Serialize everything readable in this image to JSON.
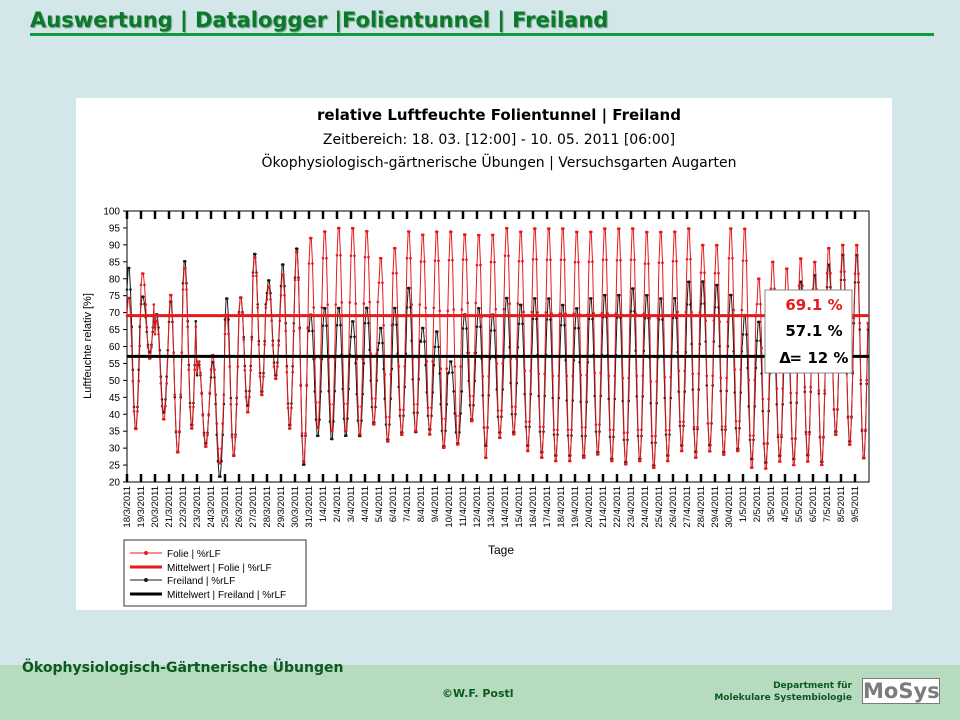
{
  "slide": {
    "title": "Auswertung | Datalogger |Folientunnel | Freiland",
    "footer_course": "Ökophysiologisch-Gärtnerische Übungen",
    "footer_copyright": "©W.F. Postl",
    "footer_dept_line1": "Department für",
    "footer_dept_line2": "Molekulare Systembiologie",
    "footer_logo": "MoSys"
  },
  "chart_data": {
    "type": "line",
    "title": "relative Luftfeuchte Folientunnel | Freiland",
    "subtitle": "Zeitbereich: 18. 03. [12:00] - 10. 05. 2011 [06:00]",
    "subtitle2": "Ökophysiologisch-gärtnerische Übungen | Versuchsgarten Augarten",
    "xlabel": "Tage",
    "ylabel": "Luftfeuchte relativ [%]",
    "ylim": [
      20,
      100
    ],
    "yticks": [
      20,
      25,
      30,
      35,
      40,
      45,
      50,
      55,
      60,
      65,
      70,
      75,
      80,
      85,
      90,
      95,
      100
    ],
    "xlim": [
      0,
      53
    ],
    "xticks": [
      "18/3/2011",
      "19/3/2011",
      "20/3/2011",
      "21/3/2011",
      "22/3/2011",
      "23/3/2011",
      "24/3/2011",
      "25/3/2011",
      "26/3/2011",
      "27/3/2011",
      "28/3/2011",
      "29/3/2011",
      "30/3/2011",
      "31/3/2011",
      "1/4/2011",
      "2/4/2011",
      "3/4/2011",
      "4/4/2011",
      "5/4/2011",
      "6/4/2011",
      "7/4/2011",
      "8/4/2011",
      "9/4/2011",
      "10/4/2011",
      "11/4/2011",
      "12/4/2011",
      "13/4/2011",
      "14/4/2011",
      "15/4/2011",
      "16/4/2011",
      "17/4/2011",
      "18/4/2011",
      "19/4/2011",
      "20/4/2011",
      "21/4/2011",
      "22/4/2011",
      "23/4/2011",
      "24/4/2011",
      "25/4/2011",
      "26/4/2011",
      "27/4/2011",
      "28/4/2011",
      "29/4/2011",
      "30/4/2011",
      "1/5/2011",
      "2/5/2011",
      "3/5/2011",
      "4/5/2011",
      "5/5/2011",
      "6/5/2011",
      "7/5/2011",
      "8/5/2011",
      "9/5/2011"
    ],
    "grid": false,
    "series": [
      {
        "name": "Folie | %rLF",
        "color": "#e41a1c",
        "marker": "dot",
        "daily_max": [
          75,
          82,
          68,
          76,
          84,
          56,
          58,
          70,
          75,
          87,
          78,
          82,
          89,
          93,
          95,
          96,
          96,
          95,
          87,
          90,
          95,
          94,
          95,
          95,
          94,
          94,
          94,
          96,
          95,
          96,
          96,
          96,
          95,
          95,
          96,
          96,
          96,
          95,
          95,
          95,
          96,
          91,
          91,
          96,
          96,
          81,
          86,
          84,
          87,
          86,
          90,
          91,
          91
        ],
        "daily_min": [
          35,
          56,
          38,
          28,
          35,
          30,
          25,
          27,
          40,
          45,
          50,
          35,
          25,
          35,
          34,
          34,
          33,
          36,
          31,
          33,
          34,
          33,
          29,
          30,
          37,
          26,
          32,
          33,
          28,
          26,
          25,
          25,
          26,
          27,
          25,
          24,
          25,
          23,
          25,
          28,
          26,
          28,
          27,
          28,
          23,
          23,
          25,
          24,
          25,
          24,
          33,
          30,
          26
        ]
      },
      {
        "name": "Mittelwert | Folie | %rLF",
        "color": "#e41a1c",
        "constant": 69.1
      },
      {
        "name": "Freiland | %rLF",
        "color": "#1a1a1a",
        "marker": "dot",
        "daily_max": [
          84,
          75,
          70,
          74,
          86,
          55,
          56,
          75,
          75,
          88,
          80,
          85,
          90,
          70,
          72,
          72,
          68,
          72,
          66,
          72,
          78,
          66,
          65,
          56,
          70,
          72,
          70,
          75,
          73,
          75,
          75,
          73,
          72,
          75,
          76,
          76,
          78,
          76,
          75,
          75,
          80,
          80,
          79,
          76,
          70,
          68,
          70,
          73,
          80,
          82,
          85,
          88,
          88
        ],
        "daily_min": [
          35,
          58,
          40,
          28,
          36,
          31,
          21,
          27,
          42,
          46,
          51,
          36,
          24,
          33,
          32,
          33,
          33,
          37,
          32,
          34,
          34,
          35,
          30,
          31,
          38,
          30,
          34,
          34,
          30,
          28,
          27,
          27,
          27,
          28,
          26,
          25,
          26,
          24,
          27,
          30,
          28,
          30,
          28,
          29,
          26,
          25,
          27,
          26,
          27,
          25,
          34,
          31,
          26
        ]
      },
      {
        "name": "Mittelwert | Freiland | %rLF",
        "color": "#000000",
        "constant": 57.1
      }
    ],
    "annotations": {
      "folie_mean": "69.1 %",
      "freiland_mean": "57.1 %",
      "delta_symbol": "Δ",
      "delta_text": "= 12 %"
    }
  }
}
